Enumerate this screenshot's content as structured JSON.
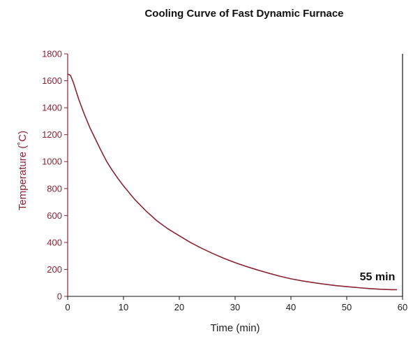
{
  "chart_data": {
    "type": "line",
    "title": "Cooling Curve of Fast Dynamic Furnace",
    "xlabel": "Time (min)",
    "ylabel": "Temperature (˚C)",
    "xlim": [
      0,
      60
    ],
    "ylim": [
      0,
      1800
    ],
    "x_ticks": [
      0,
      10,
      20,
      30,
      40,
      50,
      60
    ],
    "y_ticks": [
      0,
      200,
      400,
      600,
      800,
      1000,
      1200,
      1400,
      1600,
      1800
    ],
    "grid": false,
    "legend": "none",
    "series": [
      {
        "color": "#8a2433",
        "x": [
          0,
          0.5,
          1,
          2,
          3,
          4,
          5,
          6,
          7,
          8,
          9,
          10,
          12,
          14,
          16,
          18,
          20,
          22,
          24,
          26,
          28,
          30,
          32,
          34,
          36,
          38,
          40,
          42,
          44,
          46,
          48,
          50,
          52,
          54,
          56,
          58,
          59
        ],
        "y": [
          1650,
          1640,
          1590,
          1460,
          1350,
          1250,
          1165,
          1080,
          1000,
          935,
          875,
          820,
          720,
          635,
          560,
          500,
          450,
          400,
          357,
          318,
          282,
          250,
          222,
          196,
          172,
          150,
          130,
          115,
          102,
          90,
          80,
          72,
          65,
          58,
          53,
          50,
          50
        ]
      }
    ],
    "annotations": [
      {
        "text": "55 min",
        "x": 55,
        "y": 150
      }
    ]
  }
}
